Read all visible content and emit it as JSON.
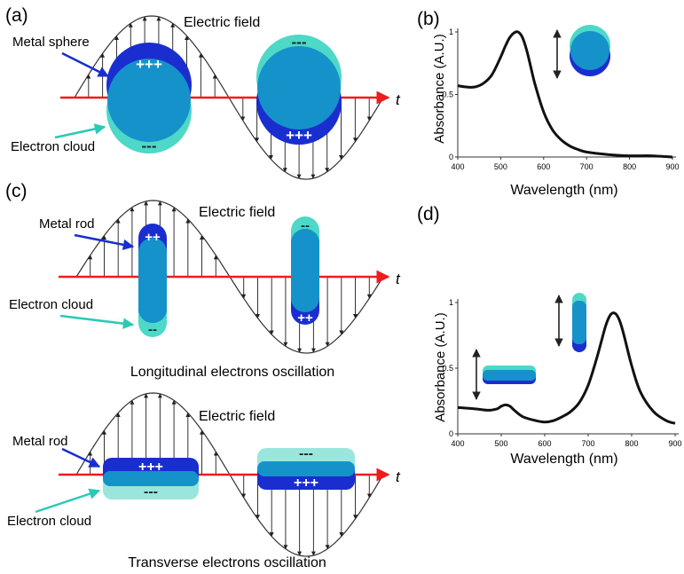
{
  "panels": {
    "a": {
      "letter": "(a)",
      "field_label": "Electric field",
      "sphere_label": "Metal sphere",
      "cloud_label": "Electron cloud",
      "plus": "+++",
      "minus": "---",
      "time_label": "t"
    },
    "b": {
      "letter": "(b)",
      "xlabel": "Wavelength (nm)",
      "ylabel": "Absorbance (A.U.)",
      "xticks": [
        "400",
        "500",
        "600",
        "700",
        "800",
        "900"
      ],
      "yticks": [
        "0",
        "0.5",
        "1"
      ]
    },
    "c": {
      "letter": "(c)",
      "top": {
        "field_label": "Electric field",
        "rod_label": "Metal rod",
        "cloud_label": "Electron cloud",
        "plus": "++",
        "minus": "--",
        "time_label": "t",
        "caption": "Longitudinal electrons oscillation"
      },
      "bottom": {
        "field_label": "Electric field",
        "rod_label": "Metal rod",
        "cloud_label": "Electron cloud",
        "plus": "+++",
        "minus": "---",
        "time_label": "t",
        "caption": "Transverse electrons oscillation"
      }
    },
    "d": {
      "letter": "(d)",
      "xlabel": "Wavelength (nm)",
      "ylabel": "Absorbance (A.U.)",
      "xticks": [
        "400",
        "500",
        "600",
        "700",
        "800",
        "900"
      ],
      "yticks": [
        "0",
        "0.5",
        "1"
      ]
    }
  },
  "colors": {
    "metal": "#1a2ecf",
    "cloud": "#4dd8c8",
    "overlap": "#1592c9",
    "axis_red": "#ee1c1c",
    "pointer_blue": "#1a2ecf",
    "pointer_teal": "#2cc9b5"
  },
  "chart_data": [
    {
      "type": "line",
      "panel": "b",
      "x": [
        400,
        420,
        440,
        460,
        480,
        500,
        510,
        520,
        530,
        540,
        550,
        560,
        570,
        580,
        600,
        620,
        640,
        660,
        680,
        700,
        750,
        800,
        850,
        900
      ],
      "y": [
        0.57,
        0.56,
        0.56,
        0.59,
        0.66,
        0.8,
        0.88,
        0.95,
        0.99,
        1.0,
        0.96,
        0.86,
        0.72,
        0.58,
        0.36,
        0.22,
        0.14,
        0.09,
        0.06,
        0.04,
        0.02,
        0.01,
        0.01,
        0.0
      ],
      "xlabel": "Wavelength (nm)",
      "ylabel": "Absorbance (A.U.)",
      "xlim": [
        400,
        900
      ],
      "ylim": [
        0,
        1
      ],
      "grid": false
    },
    {
      "type": "line",
      "panel": "d",
      "x": [
        400,
        440,
        470,
        490,
        500,
        510,
        520,
        530,
        550,
        580,
        600,
        620,
        640,
        660,
        680,
        700,
        720,
        740,
        750,
        760,
        770,
        780,
        800,
        820,
        850,
        880,
        900
      ],
      "y": [
        0.2,
        0.19,
        0.18,
        0.19,
        0.21,
        0.22,
        0.21,
        0.18,
        0.13,
        0.1,
        0.09,
        0.1,
        0.13,
        0.17,
        0.24,
        0.37,
        0.58,
        0.82,
        0.9,
        0.92,
        0.88,
        0.78,
        0.52,
        0.32,
        0.17,
        0.1,
        0.08
      ],
      "xlabel": "Wavelength (nm)",
      "ylabel": "Absorbance (A.U.)",
      "xlim": [
        400,
        900
      ],
      "ylim": [
        0,
        1
      ],
      "grid": false
    }
  ]
}
